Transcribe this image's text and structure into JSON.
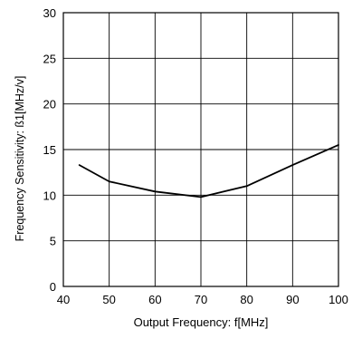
{
  "chart_data": {
    "type": "line",
    "title": "",
    "xlabel": "Output Frequency: f[MHz]",
    "ylabel": "Frequency Sensitivity: ß1[MHz/v]",
    "xlim": [
      40,
      100
    ],
    "ylim": [
      0,
      30
    ],
    "x_ticks": [
      40,
      50,
      60,
      70,
      80,
      90,
      100
    ],
    "y_ticks": [
      0,
      5,
      10,
      15,
      20,
      25,
      30
    ],
    "grid": true,
    "legend": "none",
    "series": [
      {
        "x": [
          43.5,
          50,
          60,
          70,
          80,
          90,
          100
        ],
        "y": [
          13.3,
          11.5,
          10.4,
          9.8,
          11.0,
          13.3,
          15.5
        ]
      }
    ],
    "colors": {
      "line": "#000000",
      "grid": "#000000",
      "frame": "#000000"
    }
  }
}
